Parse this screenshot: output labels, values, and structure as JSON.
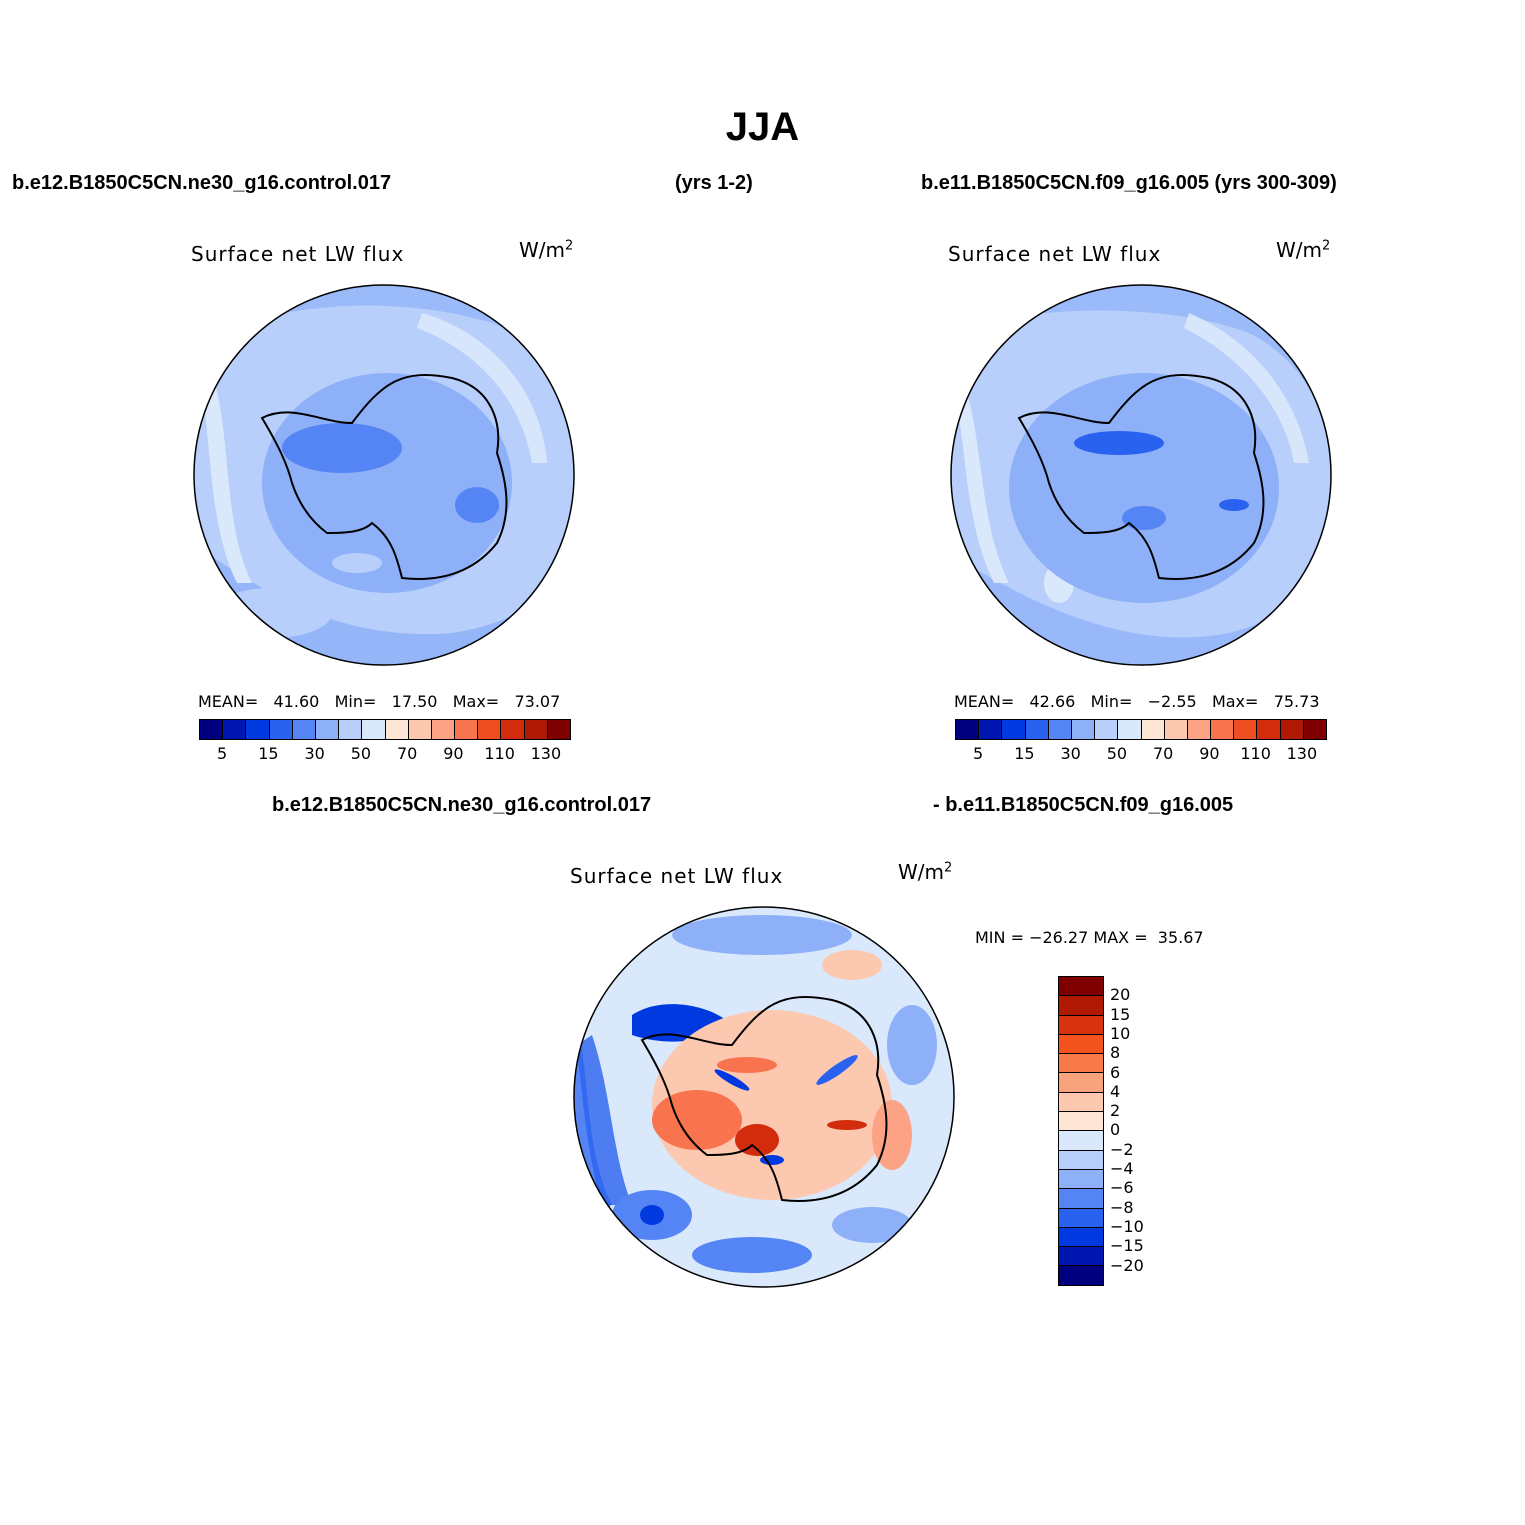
{
  "title": "JJA",
  "header": {
    "case1": "b.e12.B1850C5CN.ne30_g16.control.017",
    "case1_years": "(yrs 1-2)",
    "case2": "b.e11.B1850C5CN.f09_g16.005 (yrs 300-309)",
    "diff_case1": "b.e12.B1850C5CN.ne30_g16.control.017",
    "diff_case2": "- b.e11.B1850C5CN.f09_g16.005"
  },
  "panels": [
    {
      "variable": "Surface net LW flux",
      "units": "W/m",
      "units_exp": "2",
      "stats": {
        "mean_label": "MEAN=",
        "mean": "41.60",
        "min_label": "Min=",
        "min": "17.50",
        "max_label": "Max=",
        "max": "73.07"
      }
    },
    {
      "variable": "Surface net LW flux",
      "units": "W/m",
      "units_exp": "2",
      "stats": {
        "mean_label": "MEAN=",
        "mean": "42.66",
        "min_label": "Min=",
        "min": "−2.55",
        "max_label": "Max=",
        "max": "75.73"
      }
    },
    {
      "variable": "Surface net LW flux",
      "units": "W/m",
      "units_exp": "2",
      "stats": {
        "min_label": "MIN =",
        "min": "−26.27",
        "max_label": "MAX =",
        "max": "35.67"
      }
    }
  ],
  "colorbar_main": {
    "colors": [
      "#00007f",
      "#0016b0",
      "#0039e0",
      "#2a62f0",
      "#5585f5",
      "#8eb0f8",
      "#b8cffb",
      "#dae8fb",
      "#fde6d6",
      "#fcc8b0",
      "#fba384",
      "#f8744e",
      "#ee4d22",
      "#d22c0c",
      "#b01a04",
      "#7f0000"
    ],
    "tick_labels": [
      "5",
      "15",
      "30",
      "50",
      "70",
      "90",
      "110",
      "130"
    ]
  },
  "colorbar_diff": {
    "colors": [
      "#7f0000",
      "#b01a04",
      "#d7330e",
      "#f2531f",
      "#f87a48",
      "#f9a37c",
      "#fcc8b0",
      "#fde6d6",
      "#dae8fb",
      "#b8cffb",
      "#8eb0f8",
      "#5585f5",
      "#2a62f0",
      "#0039e0",
      "#0016b0",
      "#00007f"
    ],
    "tick_labels": [
      "20",
      "15",
      "10",
      "8",
      "6",
      "4",
      "2",
      "0",
      "−2",
      "−4",
      "−6",
      "−8",
      "−10",
      "−15",
      "−20"
    ]
  }
}
